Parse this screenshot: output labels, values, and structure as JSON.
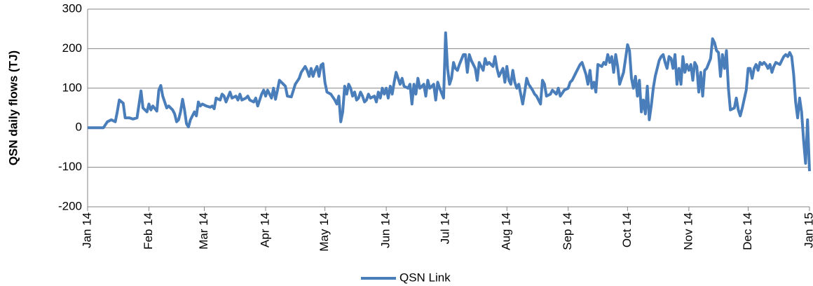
{
  "chart_data": {
    "type": "line",
    "y_label": "QSN daily flows (TJ)",
    "xlim": [
      0,
      365
    ],
    "xticks": [
      {
        "value": 0,
        "label": "Jan 14"
      },
      {
        "value": 31,
        "label": "Feb 14"
      },
      {
        "value": 59,
        "label": "Mar 14"
      },
      {
        "value": 90,
        "label": "Apr 14"
      },
      {
        "value": 120,
        "label": "May 14"
      },
      {
        "value": 151,
        "label": "Jun 14"
      },
      {
        "value": 181,
        "label": "Jul 14"
      },
      {
        "value": 212,
        "label": "Aug 14"
      },
      {
        "value": 243,
        "label": "Sep 14"
      },
      {
        "value": 273,
        "label": "Oct 14"
      },
      {
        "value": 304,
        "label": "Nov 14"
      },
      {
        "value": 334,
        "label": "Dec 14"
      },
      {
        "value": 365,
        "label": "Jan 15"
      }
    ],
    "ylim": [
      -200,
      300
    ],
    "yticks": [
      -200,
      -100,
      0,
      100,
      200,
      300
    ],
    "grid": true,
    "legend": "bottom",
    "x": [
      0,
      8,
      10,
      12,
      14,
      15,
      16,
      18,
      19,
      21,
      23,
      25,
      27,
      28,
      30,
      31,
      32,
      33,
      35,
      36,
      37,
      38,
      40,
      41,
      43,
      44,
      45,
      46,
      47,
      48,
      49,
      50,
      51,
      52,
      54,
      55,
      56,
      57,
      58,
      60,
      62,
      63,
      64,
      65,
      67,
      68,
      69,
      70,
      72,
      73,
      75,
      76,
      77,
      78,
      80,
      81,
      82,
      84,
      85,
      86,
      88,
      89,
      90,
      91,
      93,
      94,
      95,
      96,
      97,
      99,
      100,
      101,
      103,
      105,
      107,
      108,
      110,
      111,
      112,
      113,
      114,
      115,
      116,
      117,
      118,
      119,
      120,
      121,
      123,
      125,
      126,
      127,
      128,
      129,
      130,
      131,
      132,
      133,
      134,
      135,
      136,
      137,
      138,
      139,
      140,
      141,
      142,
      143,
      145,
      146,
      147,
      148,
      149,
      150,
      151,
      152,
      153,
      154,
      155,
      156,
      157,
      158,
      159,
      160,
      162,
      163,
      164,
      165,
      166,
      167,
      168,
      170,
      171,
      172,
      173,
      175,
      176,
      177,
      178,
      180,
      181,
      182,
      183,
      184,
      185,
      186,
      187,
      188,
      190,
      191,
      192,
      193,
      194,
      196,
      197,
      198,
      200,
      201,
      202,
      203,
      205,
      206,
      207,
      208,
      210,
      211,
      212,
      213,
      214,
      215,
      216,
      217,
      218,
      220,
      221,
      222,
      223,
      225,
      226,
      227,
      229,
      230,
      231,
      232,
      234,
      235,
      237,
      238,
      239,
      241,
      243,
      244,
      245,
      247,
      248,
      249,
      250,
      252,
      253,
      254,
      255,
      256,
      257,
      258,
      260,
      261,
      262,
      263,
      264,
      265,
      266,
      267,
      268,
      269,
      271,
      273,
      274,
      275,
      276,
      277,
      278,
      279,
      280,
      281,
      282,
      283,
      284,
      285,
      286,
      287,
      288,
      289,
      290,
      291,
      292,
      293,
      294,
      295,
      296,
      297,
      298,
      299,
      300,
      301,
      302,
      303,
      304,
      305,
      306,
      307,
      308,
      309,
      310,
      311,
      312,
      313,
      315,
      316,
      317,
      318,
      319,
      320,
      321,
      322,
      323,
      324,
      325,
      327,
      328,
      329,
      330,
      331,
      333,
      334,
      335,
      336,
      337,
      338,
      339,
      340,
      341,
      342,
      343,
      344,
      345,
      346,
      347,
      348,
      350,
      351,
      352,
      353,
      354,
      355,
      356,
      357,
      358,
      359,
      360,
      361,
      362,
      363,
      364,
      365
    ],
    "series": [
      {
        "name": "QSN Link",
        "color": "#4a7ebb",
        "values": [
          0,
          0,
          15,
          20,
          15,
          40,
          70,
          62,
          25,
          25,
          22,
          25,
          93,
          50,
          40,
          60,
          45,
          55,
          42,
          95,
          107,
          80,
          50,
          55,
          45,
          35,
          15,
          20,
          40,
          72,
          45,
          10,
          2,
          20,
          40,
          30,
          65,
          55,
          60,
          55,
          52,
          55,
          48,
          75,
          70,
          85,
          80,
          65,
          90,
          75,
          80,
          70,
          85,
          70,
          75,
          80,
          70,
          65,
          75,
          55,
          85,
          95,
          80,
          95,
          75,
          100,
          72,
          95,
          120,
          110,
          105,
          80,
          78,
          110,
          125,
          140,
          155,
          145,
          130,
          150,
          130,
          145,
          155,
          130,
          158,
          162,
          115,
          90,
          85,
          70,
          60,
          80,
          15,
          40,
          105,
          85,
          110,
          100,
          80,
          90,
          70,
          75,
          90,
          80,
          65,
          70,
          85,
          75,
          80,
          65,
          90,
          75,
          100,
          85,
          100,
          75,
          105,
          85,
          115,
          140,
          125,
          110,
          125,
          105,
          100,
          110,
          60,
          110,
          85,
          125,
          100,
          110,
          80,
          120,
          100,
          110,
          70,
          115,
          100,
          75,
          240,
          150,
          110,
          125,
          165,
          150,
          145,
          160,
          185,
          185,
          140,
          185,
          170,
          150,
          120,
          165,
          145,
          175,
          160,
          165,
          155,
          180,
          150,
          130,
          150,
          115,
          155,
          120,
          110,
          145,
          115,
          100,
          110,
          60,
          90,
          125,
          110,
          95,
          85,
          80,
          60,
          120,
          110,
          80,
          85,
          95,
          85,
          100,
          80,
          95,
          100,
          115,
          120,
          140,
          150,
          160,
          165,
          135,
          110,
          145,
          100,
          115,
          90,
          160,
          155,
          165,
          160,
          185,
          165,
          180,
          140,
          185,
          155,
          110,
          140,
          210,
          195,
          125,
          100,
          130,
          80,
          120,
          40,
          70,
          35,
          105,
          20,
          55,
          100,
          130,
          150,
          170,
          180,
          185,
          165,
          150,
          180,
          175,
          150,
          185,
          110,
          150,
          110,
          180,
          140,
          160,
          145,
          160,
          120,
          165,
          155,
          90,
          140,
          80,
          145,
          150,
          175,
          225,
          215,
          195,
          190,
          130,
          185,
          150,
          195,
          100,
          45,
          50,
          75,
          45,
          30,
          50,
          95,
          150,
          150,
          125,
          150,
          160,
          145,
          165,
          160,
          165,
          160,
          150,
          160,
          140,
          155,
          165,
          160,
          170,
          180,
          185,
          180,
          190,
          180,
          135,
          65,
          25,
          75,
          40,
          -30,
          -90,
          20,
          -110
        ]
      }
    ]
  }
}
